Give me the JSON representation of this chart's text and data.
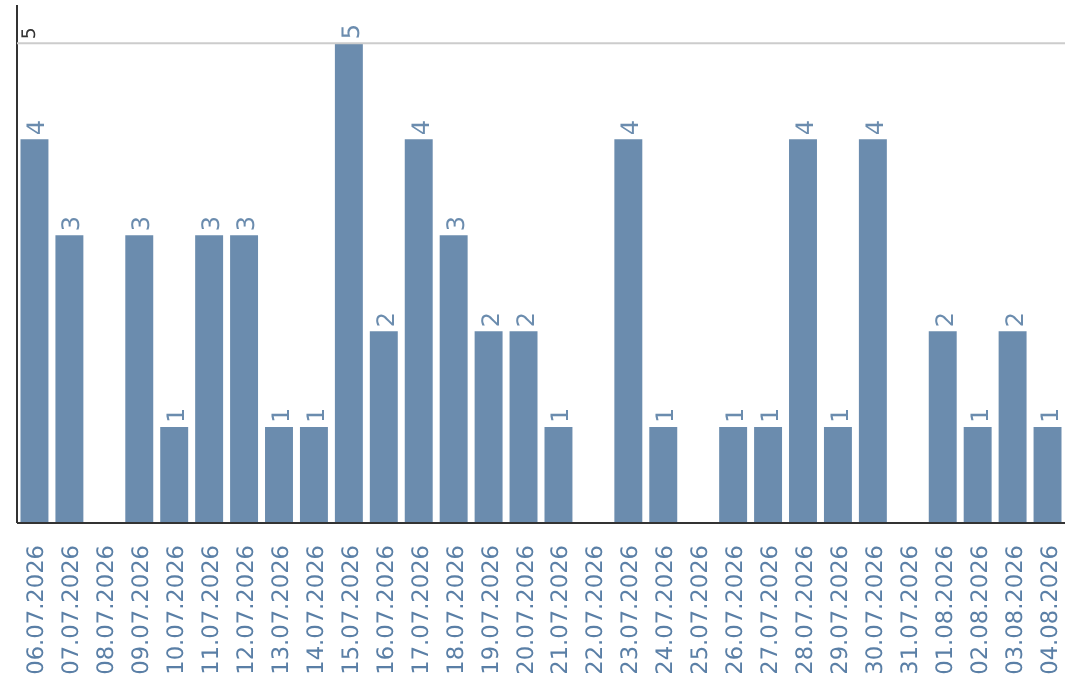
{
  "chart_data": {
    "type": "bar",
    "categories": [
      "06.07.2026",
      "07.07.2026",
      "08.07.2026",
      "09.07.2026",
      "10.07.2026",
      "11.07.2026",
      "12.07.2026",
      "13.07.2026",
      "14.07.2026",
      "15.07.2026",
      "16.07.2026",
      "17.07.2026",
      "18.07.2026",
      "19.07.2026",
      "20.07.2026",
      "21.07.2026",
      "22.07.2026",
      "23.07.2026",
      "24.07.2026",
      "25.07.2026",
      "26.07.2026",
      "27.07.2026",
      "28.07.2026",
      "29.07.2026",
      "30.07.2026",
      "31.07.2026",
      "01.08.2026",
      "02.08.2026",
      "03.08.2026",
      "04.08.2026"
    ],
    "values": [
      4,
      3,
      null,
      3,
      1,
      3,
      3,
      1,
      1,
      5,
      2,
      4,
      3,
      2,
      2,
      1,
      null,
      4,
      1,
      null,
      1,
      1,
      4,
      1,
      4,
      null,
      2,
      1,
      2,
      1
    ],
    "color": "#6b8cae",
    "ylim": [
      0,
      5.4
    ],
    "ref_lines": [
      {
        "axis": "y",
        "value": 5,
        "label": "5",
        "color": "#cccccc"
      }
    ],
    "data_labels": true
  }
}
